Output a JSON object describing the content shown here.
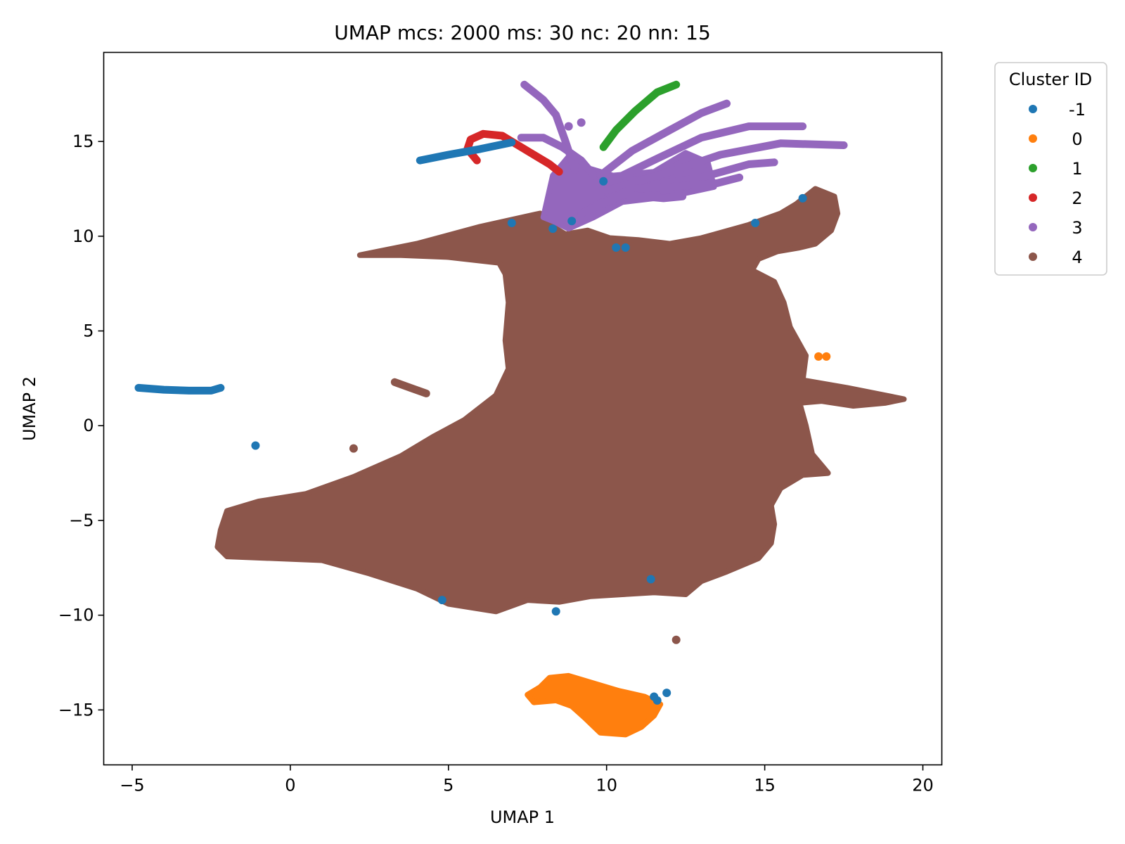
{
  "chart_data": {
    "type": "scatter",
    "title": "UMAP mcs: 2000 ms: 30 nc: 20 nn: 15",
    "xlabel": "UMAP 1",
    "ylabel": "UMAP 2",
    "xlim": [
      -5.9,
      20.6
    ],
    "ylim": [
      -17.9,
      19.7
    ],
    "x_ticks": [
      {
        "value": -5,
        "label": "−5"
      },
      {
        "value": 0,
        "label": "0"
      },
      {
        "value": 5,
        "label": "5"
      },
      {
        "value": 10,
        "label": "10"
      },
      {
        "value": 15,
        "label": "15"
      },
      {
        "value": 20,
        "label": "20"
      }
    ],
    "y_ticks": [
      {
        "value": 15,
        "label": "15"
      },
      {
        "value": 10,
        "label": "10"
      },
      {
        "value": 5,
        "label": "5"
      },
      {
        "value": 0,
        "label": "0"
      },
      {
        "value": -5,
        "label": "−5"
      },
      {
        "value": -10,
        "label": "−10"
      },
      {
        "value": -15,
        "label": "−15"
      }
    ],
    "legend": {
      "title": "Cluster ID",
      "placement": "outside-top-right"
    },
    "series": [
      {
        "name": "-1",
        "color": "#1f77b4",
        "points": [],
        "polylines": [
          [
            [
              -4.8,
              2.0
            ],
            [
              -4.0,
              1.9
            ],
            [
              -3.2,
              1.85
            ],
            [
              -2.5,
              1.85
            ],
            [
              -2.2,
              2.0
            ]
          ],
          [
            [
              4.1,
              14.0
            ],
            [
              5.0,
              14.3
            ],
            [
              6.0,
              14.6
            ],
            [
              7.0,
              14.95
            ]
          ]
        ],
        "extra_points": [
          [
            -1.1,
            -1.05
          ],
          [
            7.0,
            10.7
          ],
          [
            8.3,
            10.4
          ],
          [
            8.9,
            10.8
          ],
          [
            9.9,
            12.9
          ],
          [
            10.3,
            9.4
          ],
          [
            10.6,
            9.4
          ],
          [
            14.7,
            10.7
          ],
          [
            16.2,
            12.0
          ],
          [
            4.8,
            -9.2
          ],
          [
            8.4,
            -9.8
          ],
          [
            11.4,
            -8.1
          ],
          [
            11.5,
            -14.3
          ],
          [
            11.9,
            -14.1
          ],
          [
            11.6,
            -14.5
          ]
        ]
      },
      {
        "name": "0",
        "color": "#ff7f0e",
        "polygon": [
          [
            7.5,
            -14.2
          ],
          [
            7.9,
            -13.8
          ],
          [
            8.2,
            -13.3
          ],
          [
            8.8,
            -13.2
          ],
          [
            9.6,
            -13.6
          ],
          [
            10.4,
            -14.0
          ],
          [
            11.2,
            -14.3
          ],
          [
            11.7,
            -14.7
          ],
          [
            11.5,
            -15.3
          ],
          [
            11.1,
            -15.9
          ],
          [
            10.6,
            -16.3
          ],
          [
            9.8,
            -16.2
          ],
          [
            9.3,
            -15.4
          ],
          [
            8.9,
            -14.8
          ],
          [
            8.4,
            -14.5
          ],
          [
            7.7,
            -14.6
          ]
        ],
        "extra_points": [
          [
            16.7,
            3.65
          ],
          [
            16.95,
            3.65
          ]
        ]
      },
      {
        "name": "1",
        "color": "#2ca02c",
        "polylines": [
          [
            [
              9.9,
              14.7
            ],
            [
              10.3,
              15.6
            ],
            [
              10.9,
              16.6
            ],
            [
              11.6,
              17.6
            ],
            [
              12.2,
              18.0
            ]
          ]
        ]
      },
      {
        "name": "2",
        "color": "#d62728",
        "polylines": [
          [
            [
              5.9,
              14.0
            ],
            [
              5.6,
              14.6
            ],
            [
              5.7,
              15.1
            ],
            [
              6.1,
              15.4
            ],
            [
              6.7,
              15.3
            ],
            [
              7.1,
              14.9
            ],
            [
              7.6,
              14.4
            ],
            [
              8.2,
              13.8
            ],
            [
              8.5,
              13.4
            ]
          ]
        ]
      },
      {
        "name": "3",
        "color": "#9467bd",
        "polygon": [
          [
            8.0,
            11.0
          ],
          [
            8.3,
            13.2
          ],
          [
            8.9,
            14.4
          ],
          [
            9.4,
            13.6
          ],
          [
            10.2,
            13.2
          ],
          [
            11.5,
            13.4
          ],
          [
            12.5,
            14.4
          ],
          [
            13.2,
            13.9
          ],
          [
            13.4,
            12.6
          ],
          [
            12.0,
            12.1
          ],
          [
            10.5,
            11.8
          ],
          [
            9.6,
            11.0
          ],
          [
            8.8,
            10.4
          ],
          [
            8.3,
            10.8
          ]
        ],
        "polylines": [
          [
            [
              7.4,
              18.0
            ],
            [
              8.0,
              17.2
            ],
            [
              8.4,
              16.4
            ],
            [
              8.7,
              15.0
            ],
            [
              9.0,
              13.5
            ]
          ],
          [
            [
              7.3,
              15.2
            ],
            [
              8.0,
              15.2
            ],
            [
              8.6,
              14.7
            ],
            [
              9.2,
              14.0
            ],
            [
              9.6,
              13.2
            ]
          ],
          [
            [
              9.8,
              13.2
            ],
            [
              10.8,
              14.5
            ],
            [
              12.0,
              15.6
            ],
            [
              13.0,
              16.5
            ],
            [
              13.8,
              17.0
            ]
          ],
          [
            [
              10.0,
              12.8
            ],
            [
              11.6,
              14.1
            ],
            [
              13.0,
              15.2
            ],
            [
              14.5,
              15.8
            ],
            [
              16.2,
              15.8
            ]
          ],
          [
            [
              10.0,
              12.4
            ],
            [
              12.0,
              13.4
            ],
            [
              13.6,
              14.3
            ],
            [
              15.5,
              14.9
            ],
            [
              17.5,
              14.8
            ]
          ],
          [
            [
              10.0,
              12.0
            ],
            [
              11.8,
              12.8
            ],
            [
              13.0,
              13.1
            ],
            [
              14.5,
              13.8
            ],
            [
              15.3,
              13.9
            ]
          ],
          [
            [
              9.5,
              11.5
            ],
            [
              10.8,
              12.5
            ],
            [
              12.0,
              12.6
            ],
            [
              13.5,
              12.8
            ],
            [
              14.2,
              13.1
            ]
          ],
          [
            [
              9.2,
              11.2
            ],
            [
              10.5,
              12.2
            ],
            [
              11.8,
              12.0
            ],
            [
              12.4,
              12.1
            ]
          ]
        ],
        "extra_points": [
          [
            9.2,
            16.0
          ],
          [
            8.8,
            15.8
          ]
        ]
      },
      {
        "name": "4",
        "color": "#8c564b",
        "polygon": [
          [
            2.2,
            9.0
          ],
          [
            4.0,
            9.6
          ],
          [
            6.0,
            10.5
          ],
          [
            7.9,
            11.2
          ],
          [
            8.2,
            10.6
          ],
          [
            8.7,
            10.1
          ],
          [
            9.4,
            10.3
          ],
          [
            10.1,
            9.9
          ],
          [
            11.0,
            9.8
          ],
          [
            12.0,
            9.6
          ],
          [
            13.0,
            9.9
          ],
          [
            14.5,
            10.6
          ],
          [
            15.5,
            11.2
          ],
          [
            16.0,
            11.7
          ],
          [
            16.6,
            12.5
          ],
          [
            17.2,
            12.1
          ],
          [
            17.3,
            11.2
          ],
          [
            17.1,
            10.3
          ],
          [
            16.6,
            9.6
          ],
          [
            16.1,
            9.4
          ],
          [
            15.4,
            9.2
          ],
          [
            14.8,
            8.8
          ],
          [
            14.6,
            8.2
          ],
          [
            15.3,
            7.6
          ],
          [
            15.6,
            6.5
          ],
          [
            15.8,
            5.2
          ],
          [
            16.3,
            3.7
          ],
          [
            16.2,
            2.4
          ],
          [
            17.6,
            2.0
          ],
          [
            19.4,
            1.4
          ],
          [
            18.8,
            1.2
          ],
          [
            17.8,
            1.05
          ],
          [
            16.8,
            1.3
          ],
          [
            16.1,
            1.2
          ],
          [
            16.3,
            0.0
          ],
          [
            16.5,
            -1.5
          ],
          [
            17.0,
            -2.5
          ],
          [
            16.2,
            -2.6
          ],
          [
            15.5,
            -3.3
          ],
          [
            15.2,
            -4.2
          ],
          [
            15.3,
            -5.2
          ],
          [
            15.2,
            -6.2
          ],
          [
            14.8,
            -7.0
          ],
          [
            13.8,
            -7.7
          ],
          [
            13.0,
            -8.2
          ],
          [
            12.5,
            -8.9
          ],
          [
            11.5,
            -8.8
          ],
          [
            10.5,
            -8.9
          ],
          [
            9.5,
            -9.0
          ],
          [
            8.5,
            -9.3
          ],
          [
            7.5,
            -9.2
          ],
          [
            6.5,
            -9.8
          ],
          [
            5.0,
            -9.4
          ],
          [
            4.0,
            -8.6
          ],
          [
            2.5,
            -7.8
          ],
          [
            1.0,
            -7.1
          ],
          [
            -0.5,
            -7.0
          ],
          [
            -2.0,
            -6.9
          ],
          [
            -2.3,
            -6.4
          ],
          [
            -2.2,
            -5.5
          ],
          [
            -2.0,
            -4.5
          ],
          [
            -1.0,
            -4.0
          ],
          [
            0.5,
            -3.6
          ],
          [
            2.0,
            -2.7
          ],
          [
            3.5,
            -1.6
          ],
          [
            4.5,
            -0.6
          ],
          [
            5.5,
            0.3
          ],
          [
            6.5,
            1.6
          ],
          [
            6.9,
            3.0
          ],
          [
            6.8,
            4.5
          ],
          [
            6.9,
            6.5
          ],
          [
            6.8,
            8.0
          ],
          [
            6.6,
            8.6
          ],
          [
            5.0,
            8.9
          ],
          [
            3.5,
            9.0
          ],
          [
            2.2,
            9.0
          ]
        ],
        "polylines": [
          [
            [
              3.3,
              2.3
            ],
            [
              3.8,
              2.0
            ],
            [
              4.3,
              1.7
            ]
          ]
        ],
        "extra_points": [
          [
            2.0,
            -1.2
          ],
          [
            12.2,
            -11.3
          ]
        ]
      }
    ]
  }
}
